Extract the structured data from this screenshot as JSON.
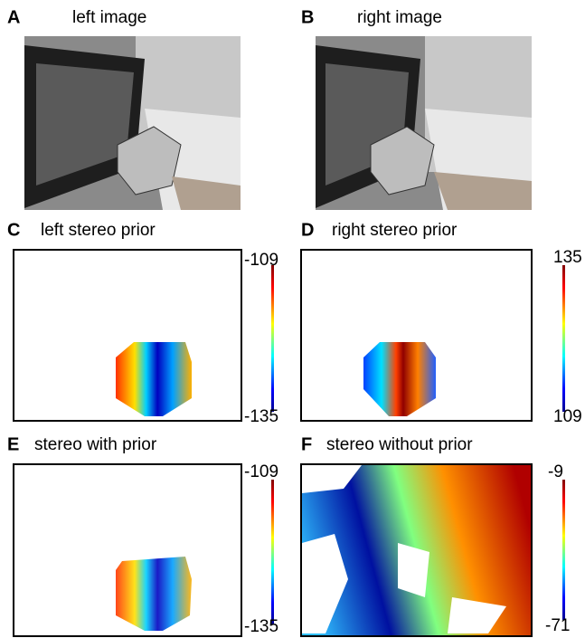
{
  "panels": [
    {
      "letter": "A",
      "title": "left image"
    },
    {
      "letter": "B",
      "title": "right image"
    },
    {
      "letter": "C",
      "title": "left stereo prior",
      "colorbar": {
        "top": "-109",
        "bottom": "-135"
      }
    },
    {
      "letter": "D",
      "title": "right stereo prior",
      "colorbar": {
        "top": "135",
        "bottom": "109"
      }
    },
    {
      "letter": "E",
      "title": "stereo with prior",
      "colorbar": {
        "top": "-109",
        "bottom": "-135"
      }
    },
    {
      "letter": "F",
      "title": "stereo without prior",
      "colorbar": {
        "top": "-9",
        "bottom": "-71"
      }
    }
  ]
}
